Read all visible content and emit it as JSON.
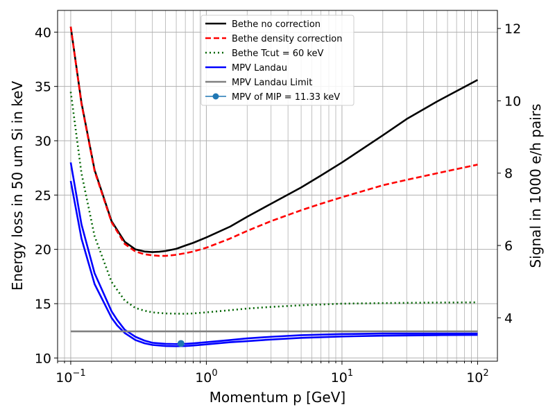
{
  "chart_data": {
    "type": "line",
    "xlabel": "Momentum p [GeV]",
    "ylabel": "Energy loss in 50 um Si in keV",
    "ylabel_right": "Signal in 1000 e/h pairs",
    "x_scale": "log",
    "x_ticks": [
      {
        "value": 0.1,
        "base": "10",
        "exp": "−1"
      },
      {
        "value": 1,
        "base": "10",
        "exp": "0"
      },
      {
        "value": 10,
        "base": "10",
        "exp": "1"
      },
      {
        "value": 100,
        "base": "10",
        "exp": "2"
      }
    ],
    "xlim": [
      0.08,
      140
    ],
    "ylim": [
      9.7,
      42
    ],
    "y_ticks": [
      10,
      15,
      20,
      25,
      30,
      35,
      40
    ],
    "ylim_right": [
      2.8,
      12.5
    ],
    "y_ticks_right": [
      4,
      6,
      8,
      10,
      12
    ],
    "grid": true,
    "legend_position": "top-center",
    "series": [
      {
        "name": "Bethe no correction",
        "color": "#000000",
        "dash": "solid",
        "x": [
          0.1,
          0.12,
          0.15,
          0.2,
          0.25,
          0.3,
          0.35,
          0.4,
          0.45,
          0.5,
          0.6,
          0.7,
          0.8,
          1,
          1.5,
          2,
          3,
          5,
          7,
          10,
          20,
          30,
          50,
          100
        ],
        "y": [
          40.5,
          33.5,
          27.3,
          22.6,
          20.7,
          20.0,
          19.8,
          19.75,
          19.78,
          19.85,
          20.05,
          20.35,
          20.6,
          21.1,
          22.1,
          23.0,
          24.2,
          25.7,
          26.8,
          28.0,
          30.5,
          32.0,
          33.6,
          35.6
        ]
      },
      {
        "name": "Bethe density correction",
        "color": "#ff0000",
        "dash": "dashed",
        "x": [
          0.1,
          0.12,
          0.15,
          0.2,
          0.25,
          0.3,
          0.35,
          0.4,
          0.45,
          0.5,
          0.6,
          0.7,
          0.8,
          1,
          1.5,
          2,
          3,
          5,
          7,
          10,
          20,
          30,
          50,
          100
        ],
        "y": [
          40.5,
          33.4,
          27.2,
          22.5,
          20.5,
          19.8,
          19.55,
          19.45,
          19.4,
          19.4,
          19.5,
          19.65,
          19.8,
          20.15,
          21.0,
          21.7,
          22.6,
          23.6,
          24.2,
          24.8,
          25.9,
          26.4,
          27.0,
          27.8
        ]
      },
      {
        "name": "Bethe Tcut = 60 keV",
        "color": "#006400",
        "dash": "dotted",
        "x": [
          0.1,
          0.12,
          0.15,
          0.2,
          0.25,
          0.3,
          0.35,
          0.4,
          0.5,
          0.6,
          0.7,
          0.8,
          1,
          1.5,
          2,
          3,
          5,
          10,
          20,
          50,
          100
        ],
        "y": [
          34.5,
          27.0,
          21.2,
          17.0,
          15.3,
          14.6,
          14.35,
          14.2,
          14.1,
          14.08,
          14.07,
          14.1,
          14.2,
          14.4,
          14.55,
          14.7,
          14.85,
          15.0,
          15.05,
          15.1,
          15.12
        ]
      },
      {
        "name": "MPV Landau",
        "color": "#0000ff",
        "dash": "solid",
        "x": [
          0.1,
          0.12,
          0.15,
          0.2,
          0.22,
          0.25,
          0.3,
          0.35,
          0.4,
          0.5,
          0.6,
          0.7,
          0.8,
          1,
          1.5,
          2,
          3,
          5,
          10,
          20,
          50,
          100
        ],
        "y": [
          28.0,
          22.3,
          17.8,
          14.3,
          13.5,
          12.6,
          11.95,
          11.6,
          11.4,
          11.3,
          11.28,
          11.3,
          11.35,
          11.45,
          11.65,
          11.8,
          11.95,
          12.1,
          12.2,
          12.25,
          12.25,
          12.25
        ]
      },
      {
        "name": "",
        "color": "#0000ff",
        "dash": "solid",
        "x": [
          0.1,
          0.12,
          0.15,
          0.2,
          0.22,
          0.25,
          0.3,
          0.35,
          0.4,
          0.5,
          0.6,
          0.7,
          0.8,
          1,
          1.5,
          2,
          3,
          5,
          10,
          20,
          50,
          100
        ],
        "y": [
          26.3,
          21.0,
          16.8,
          13.7,
          13.0,
          12.3,
          11.65,
          11.35,
          11.2,
          11.1,
          11.08,
          11.1,
          11.15,
          11.25,
          11.45,
          11.55,
          11.7,
          11.85,
          11.98,
          12.05,
          12.1,
          12.12
        ]
      },
      {
        "name": "MPV Landau Limit",
        "color": "#808080",
        "dash": "solid",
        "x": [
          0.1,
          100
        ],
        "y": [
          12.45,
          12.45
        ]
      }
    ],
    "points": [
      {
        "name": "MPV of MIP = 11.33 keV",
        "x": 0.65,
        "y": 11.33,
        "color": "#1f77b4"
      }
    ]
  }
}
